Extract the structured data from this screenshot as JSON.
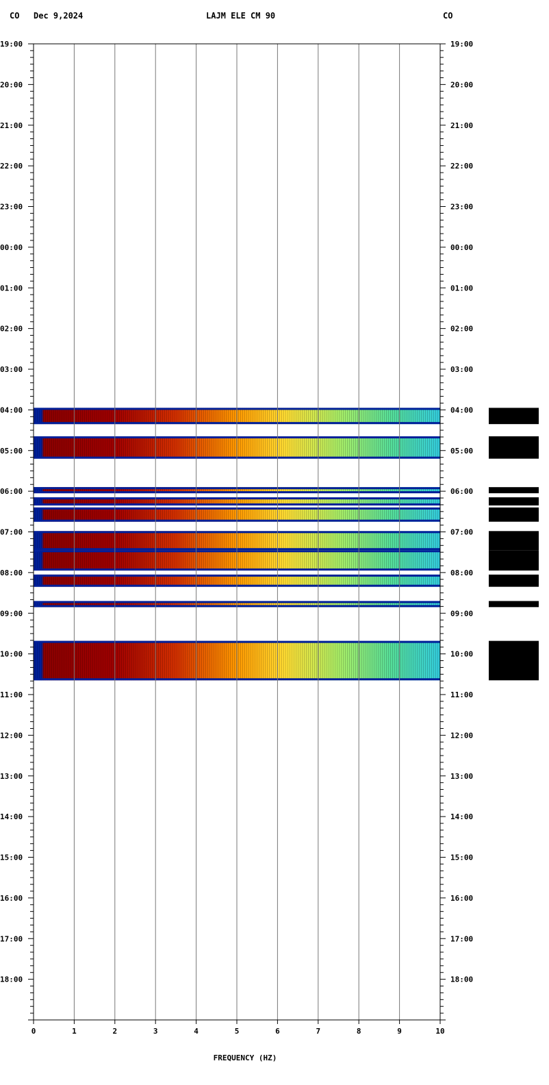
{
  "header": {
    "left_code": "CO",
    "date": "Dec 9,2024",
    "station": "LAJM ELE CM 90",
    "right_code": "CO"
  },
  "chart_data": {
    "type": "heatmap",
    "xlabel": "FREQUENCY (HZ)",
    "xlim": [
      0,
      10
    ],
    "x_ticks": [
      "0",
      "1",
      "2",
      "3",
      "4",
      "5",
      "6",
      "7",
      "8",
      "9",
      "10"
    ],
    "y_ticks": [
      "19:00",
      "20:00",
      "21:00",
      "22:00",
      "23:00",
      "00:00",
      "01:00",
      "02:00",
      "03:00",
      "04:00",
      "05:00",
      "06:00",
      "07:00",
      "08:00",
      "09:00",
      "10:00",
      "11:00",
      "12:00",
      "13:00",
      "14:00",
      "15:00",
      "16:00",
      "17:00",
      "18:00"
    ],
    "y_range_hours": 24,
    "colormap": [
      "#8b0000",
      "#c81e00",
      "#ff6600",
      "#ffcc00",
      "#ffff66",
      "#66ff99",
      "#33ccff",
      "#001f99"
    ],
    "active_segments": [
      {
        "start_hour": 8.95,
        "end_hour": 9.35
      },
      {
        "start_hour": 9.65,
        "end_hour": 10.2
      },
      {
        "start_hour": 10.9,
        "end_hour": 11.05
      },
      {
        "start_hour": 11.15,
        "end_hour": 11.35
      },
      {
        "start_hour": 11.4,
        "end_hour": 11.75
      },
      {
        "start_hour": 11.98,
        "end_hour": 12.45
      },
      {
        "start_hour": 12.45,
        "end_hour": 12.95
      },
      {
        "start_hour": 13.05,
        "end_hour": 13.35
      },
      {
        "start_hour": 13.7,
        "end_hour": 13.85
      },
      {
        "start_hour": 14.68,
        "end_hour": 15.65
      }
    ]
  }
}
